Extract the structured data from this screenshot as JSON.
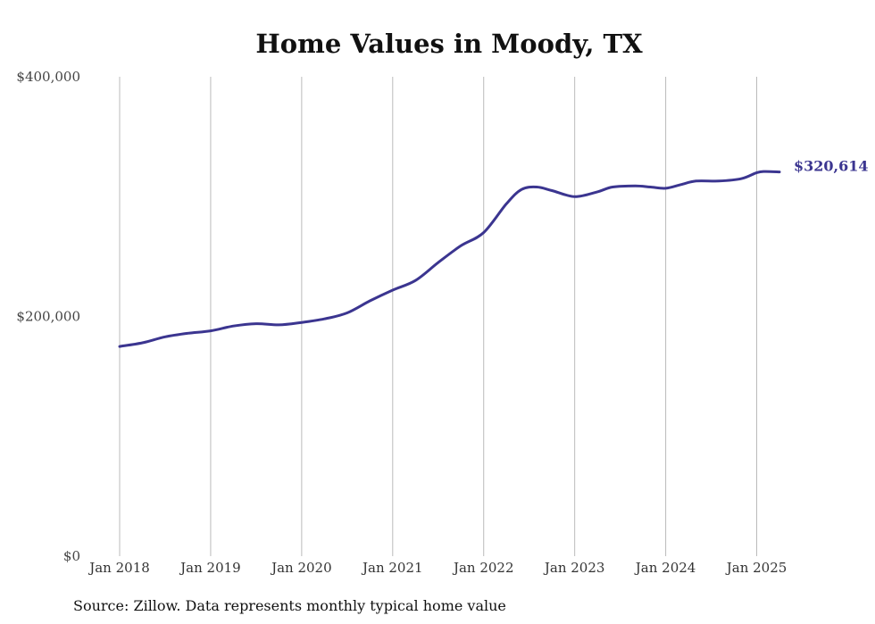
{
  "chart_data": {
    "type": "line",
    "title": "Home Values in Moody, TX",
    "source": "Source: Zillow. Data represents monthly typical home value",
    "ylim": [
      0,
      400000
    ],
    "yticks": [
      {
        "value": 0,
        "label": "$0"
      },
      {
        "value": 200000,
        "label": "$200,000"
      },
      {
        "value": 400000,
        "label": "$400,000"
      }
    ],
    "xlim": [
      "2018-01",
      "2025-04"
    ],
    "xticks": [
      {
        "date": "2018-01",
        "label": "Jan 2018"
      },
      {
        "date": "2019-01",
        "label": "Jan 2019"
      },
      {
        "date": "2020-01",
        "label": "Jan 2020"
      },
      {
        "date": "2021-01",
        "label": "Jan 2021"
      },
      {
        "date": "2022-01",
        "label": "Jan 2022"
      },
      {
        "date": "2023-01",
        "label": "Jan 2023"
      },
      {
        "date": "2024-01",
        "label": "Jan 2024"
      },
      {
        "date": "2025-01",
        "label": "Jan 2025"
      }
    ],
    "grid": "vertical",
    "line_color": "#3b3590",
    "end_label": "$320,614",
    "series": [
      {
        "points": [
          [
            "2018-01",
            175000
          ],
          [
            "2018-04",
            178000
          ],
          [
            "2018-07",
            183000
          ],
          [
            "2018-10",
            186000
          ],
          [
            "2019-01",
            188000
          ],
          [
            "2019-04",
            192000
          ],
          [
            "2019-07",
            194000
          ],
          [
            "2019-10",
            193000
          ],
          [
            "2020-01",
            195000
          ],
          [
            "2020-04",
            198000
          ],
          [
            "2020-07",
            203000
          ],
          [
            "2020-10",
            213000
          ],
          [
            "2021-01",
            222000
          ],
          [
            "2021-04",
            230000
          ],
          [
            "2021-07",
            245000
          ],
          [
            "2021-10",
            259000
          ],
          [
            "2022-01",
            270000
          ],
          [
            "2022-04",
            294000
          ],
          [
            "2022-06",
            306000
          ],
          [
            "2022-08",
            308000
          ],
          [
            "2022-10",
            305000
          ],
          [
            "2023-01",
            300000
          ],
          [
            "2023-04",
            304000
          ],
          [
            "2023-06",
            308000
          ],
          [
            "2023-09",
            309000
          ],
          [
            "2023-11",
            308000
          ],
          [
            "2024-01",
            307000
          ],
          [
            "2024-03",
            310000
          ],
          [
            "2024-05",
            313000
          ],
          [
            "2024-08",
            313000
          ],
          [
            "2024-11",
            315000
          ],
          [
            "2025-01",
            320000
          ],
          [
            "2025-02",
            321000
          ],
          [
            "2025-04",
            320614
          ]
        ]
      }
    ]
  }
}
